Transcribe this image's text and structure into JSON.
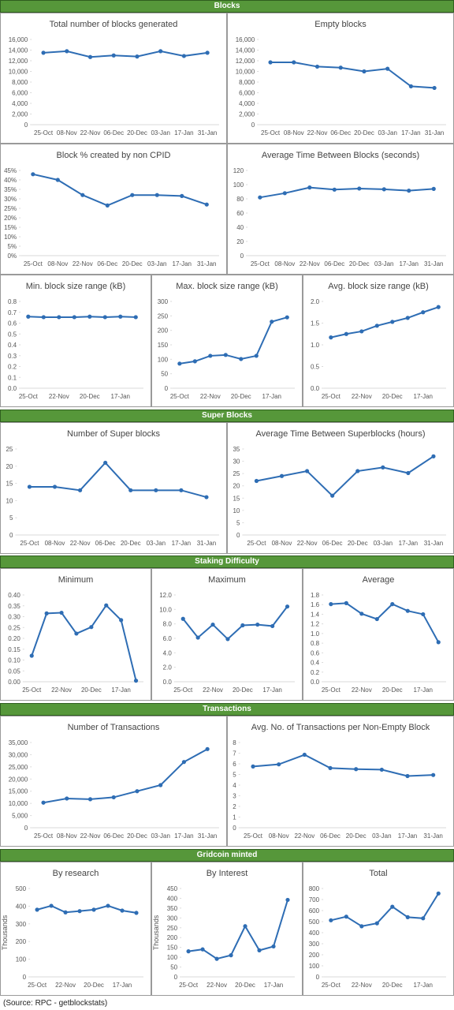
{
  "sections": [
    {
      "title": "Blocks",
      "chart_data": [
        {
          "type": "line",
          "title": "Total number of blocks generated",
          "categories": [
            "25-Oct",
            "08-Nov",
            "22-Nov",
            "06-Dec",
            "20-Dec",
            "03-Jan",
            "17-Jan",
            "31-Jan"
          ],
          "values": [
            13500,
            13800,
            12700,
            13000,
            12800,
            13800,
            12900,
            13500
          ],
          "color": "#2e6db4",
          "ylim": [
            0,
            16000
          ],
          "yticks": [
            0,
            {
              "value": 2000,
              "label": "2,000"
            },
            {
              "value": 4000,
              "label": "4,000"
            },
            {
              "value": 6000,
              "label": "6,000"
            },
            {
              "value": 8000,
              "label": "8,000"
            },
            {
              "value": 10000,
              "label": "10,000"
            },
            {
              "value": 12000,
              "label": "12,000"
            },
            {
              "value": 14000,
              "label": "14,000"
            },
            {
              "value": 16000,
              "label": "16,000"
            }
          ]
        },
        {
          "type": "line",
          "title": "Empty blocks",
          "categories": [
            "25-Oct",
            "08-Nov",
            "22-Nov",
            "06-Dec",
            "20-Dec",
            "03-Jan",
            "17-Jan",
            "31-Jan"
          ],
          "values": [
            11700,
            11700,
            10900,
            10700,
            10000,
            10500,
            7200,
            6900
          ],
          "color": "#2e6db4",
          "ylim": [
            0,
            16000
          ],
          "yticks": [
            0,
            {
              "value": 2000,
              "label": "2,000"
            },
            {
              "value": 4000,
              "label": "4,000"
            },
            {
              "value": 6000,
              "label": "6,000"
            },
            {
              "value": 8000,
              "label": "8,000"
            },
            {
              "value": 10000,
              "label": "10,000"
            },
            {
              "value": 12000,
              "label": "12,000"
            },
            {
              "value": 14000,
              "label": "14,000"
            },
            {
              "value": 16000,
              "label": "16,000"
            }
          ]
        },
        {
          "type": "line",
          "title": "Block % created by non CPID",
          "categories": [
            "25-Oct",
            "08-Nov",
            "22-Nov",
            "06-Dec",
            "20-Dec",
            "03-Jan",
            "17-Jan",
            "31-Jan"
          ],
          "values": [
            43,
            40,
            32,
            26.5,
            32,
            32,
            31.5,
            27
          ],
          "color": "#2e6db4",
          "ylim": [
            0,
            45
          ],
          "yticks": [
            {
              "value": 0,
              "label": "0%"
            },
            {
              "value": 5,
              "label": "5%"
            },
            {
              "value": 10,
              "label": "10%"
            },
            {
              "value": 15,
              "label": "15%"
            },
            {
              "value": 20,
              "label": "20%"
            },
            {
              "value": 25,
              "label": "25%"
            },
            {
              "value": 30,
              "label": "30%"
            },
            {
              "value": 35,
              "label": "35%"
            },
            {
              "value": 40,
              "label": "40%"
            },
            {
              "value": 45,
              "label": "45%"
            }
          ]
        },
        {
          "type": "line",
          "title": "Average Time Between Blocks (seconds)",
          "categories": [
            "25-Oct",
            "08-Nov",
            "22-Nov",
            "06-Dec",
            "20-Dec",
            "03-Jan",
            "17-Jan",
            "31-Jan"
          ],
          "values": [
            82,
            88,
            96,
            93,
            94.5,
            93.5,
            91.5,
            94
          ],
          "color": "#2e6db4",
          "ylim": [
            0,
            120
          ],
          "yticks": [
            0,
            20,
            40,
            60,
            80,
            100,
            120
          ]
        },
        {
          "type": "line",
          "title": "Min. block size range (kB)",
          "categories": [
            "25-Oct",
            null,
            "22-Nov",
            null,
            "20-Dec",
            null,
            "17-Jan",
            null
          ],
          "values": [
            0.66,
            0.655,
            0.655,
            0.655,
            0.66,
            0.655,
            0.66,
            0.655
          ],
          "color": "#2e6db4",
          "ylim": [
            0,
            0.8
          ],
          "yticks": [
            {
              "value": 0,
              "label": "0.0"
            },
            0.1,
            0.2,
            0.3,
            0.4,
            0.5,
            0.6,
            0.7,
            0.8
          ]
        },
        {
          "type": "line",
          "title": "Max. block size range (kB)",
          "categories": [
            "25-Oct",
            null,
            "22-Nov",
            null,
            "20-Dec",
            null,
            "17-Jan",
            null
          ],
          "values": [
            85,
            93,
            112,
            115,
            101,
            112,
            230,
            245
          ],
          "color": "#2e6db4",
          "ylim": [
            0,
            300
          ],
          "yticks": [
            0,
            50,
            100,
            150,
            200,
            250,
            300
          ]
        },
        {
          "type": "line",
          "title": "Avg. block size range (kB)",
          "categories": [
            "25-Oct",
            null,
            "22-Nov",
            null,
            "20-Dec",
            null,
            "17-Jan",
            null
          ],
          "values": [
            1.17,
            1.25,
            1.31,
            1.44,
            1.53,
            1.62,
            1.75,
            1.87
          ],
          "color": "#2e6db4",
          "ylim": [
            0,
            2
          ],
          "yticks": [
            {
              "value": 0,
              "label": "0.0"
            },
            0.5,
            {
              "value": 1,
              "label": "1.0"
            },
            1.5,
            {
              "value": 2,
              "label": "2.0"
            }
          ]
        }
      ]
    },
    {
      "title": "Super Blocks",
      "chart_data": [
        {
          "type": "line",
          "title": "Number of Super blocks",
          "categories": [
            "25-Oct",
            "08-Nov",
            "22-Nov",
            "06-Dec",
            "20-Dec",
            "03-Jan",
            "17-Jan",
            "31-Jan"
          ],
          "values": [
            14,
            14,
            13,
            21,
            13,
            13,
            13,
            11
          ],
          "color": "#2e6db4",
          "ylim": [
            0,
            25
          ],
          "yticks": [
            0,
            5,
            10,
            15,
            20,
            25
          ]
        },
        {
          "type": "line",
          "title": "Average Time Between Superblocks (hours)",
          "categories": [
            "25-Oct",
            "08-Nov",
            "22-Nov",
            "06-Dec",
            "20-Dec",
            "03-Jan",
            "17-Jan",
            "31-Jan"
          ],
          "values": [
            22,
            24,
            26,
            16,
            26,
            27.5,
            25.2,
            32
          ],
          "color": "#2e6db4",
          "ylim": [
            0,
            35
          ],
          "yticks": [
            0,
            5,
            10,
            15,
            20,
            25,
            30,
            35
          ]
        }
      ]
    },
    {
      "title": "Staking Difficulty",
      "chart_data": [
        {
          "type": "line",
          "title": "Minimum",
          "categories": [
            "25-Oct",
            null,
            "22-Nov",
            null,
            "20-Dec",
            null,
            "17-Jan",
            null
          ],
          "values": [
            0.12,
            0.315,
            0.318,
            0.222,
            0.252,
            0.352,
            0.284,
            0.005
          ],
          "color": "#2e6db4",
          "ylim": [
            0,
            0.4
          ],
          "yticks": [
            {
              "value": 0,
              "label": "0.00"
            },
            0.05,
            {
              "value": 0.1,
              "label": "0.10"
            },
            0.15,
            {
              "value": 0.2,
              "label": "0.20"
            },
            0.25,
            {
              "value": 0.3,
              "label": "0.30"
            },
            0.35,
            {
              "value": 0.4,
              "label": "0.40"
            }
          ]
        },
        {
          "type": "line",
          "title": "Maximum",
          "categories": [
            "25-Oct",
            null,
            "22-Nov",
            null,
            "20-Dec",
            null,
            "17-Jan",
            null
          ],
          "values": [
            8.7,
            6.1,
            7.9,
            5.9,
            7.8,
            7.9,
            7.7,
            10.4
          ],
          "color": "#2e6db4",
          "ylim": [
            0,
            12
          ],
          "yticks": [
            {
              "value": 0,
              "label": "0.0"
            },
            {
              "value": 2,
              "label": "2.0"
            },
            {
              "value": 4,
              "label": "4.0"
            },
            {
              "value": 6,
              "label": "6.0"
            },
            {
              "value": 8,
              "label": "8.0"
            },
            {
              "value": 10,
              "label": "10.0"
            },
            {
              "value": 12,
              "label": "12.0"
            }
          ]
        },
        {
          "type": "line",
          "title": "Average",
          "categories": [
            "25-Oct",
            null,
            "22-Nov",
            null,
            "20-Dec",
            null,
            "17-Jan",
            null
          ],
          "values": [
            1.61,
            1.63,
            1.41,
            1.3,
            1.61,
            1.47,
            1.4,
            0.82
          ],
          "color": "#2e6db4",
          "ylim": [
            0,
            1.8
          ],
          "yticks": [
            {
              "value": 0,
              "label": "0.0"
            },
            0.2,
            0.4,
            0.6,
            0.8,
            {
              "value": 1,
              "label": "1.0"
            },
            1.2,
            1.4,
            1.6,
            1.8
          ]
        }
      ]
    },
    {
      "title": "Transactions",
      "chart_data": [
        {
          "type": "line",
          "title": "Number of Transactions",
          "categories": [
            "25-Oct",
            "08-Nov",
            "22-Nov",
            "06-Dec",
            "20-Dec",
            "03-Jan",
            "17-Jan",
            "31-Jan"
          ],
          "values": [
            10300,
            12000,
            11700,
            12500,
            15000,
            17500,
            27000,
            32300
          ],
          "color": "#2e6db4",
          "ylim": [
            0,
            35000
          ],
          "yticks": [
            0,
            {
              "value": 5000,
              "label": "5,000"
            },
            {
              "value": 10000,
              "label": "10,000"
            },
            {
              "value": 15000,
              "label": "15,000"
            },
            {
              "value": 20000,
              "label": "20,000"
            },
            {
              "value": 25000,
              "label": "25,000"
            },
            {
              "value": 30000,
              "label": "30,000"
            },
            {
              "value": 35000,
              "label": "35,000"
            }
          ]
        },
        {
          "type": "line",
          "title": "Avg. No. of Transactions per Non-Empty Block",
          "categories": [
            "25-Oct",
            "08-Nov",
            "22-Nov",
            "06-Dec",
            "20-Dec",
            "03-Jan",
            "17-Jan",
            "31-Jan"
          ],
          "values": [
            5.75,
            5.95,
            6.85,
            5.6,
            5.5,
            5.45,
            4.85,
            4.95
          ],
          "color": "#2e6db4",
          "ylim": [
            0,
            8
          ],
          "yticks": [
            0,
            1,
            2,
            3,
            4,
            5,
            6,
            7,
            8
          ]
        }
      ]
    },
    {
      "title": "Gridcoin minted",
      "chart_data": [
        {
          "type": "line",
          "title": "By research",
          "ylabel": "Thousands",
          "categories": [
            "25-Oct",
            null,
            "22-Nov",
            null,
            "20-Dec",
            null,
            "17-Jan",
            null
          ],
          "values": [
            380,
            402,
            365,
            372,
            380,
            402,
            375,
            362
          ],
          "color": "#2e6db4",
          "ylim": [
            0,
            500
          ],
          "yticks": [
            0,
            100,
            200,
            300,
            400,
            500
          ]
        },
        {
          "type": "line",
          "title": "By Interest",
          "ylabel": "Thousands",
          "categories": [
            "25-Oct",
            null,
            "22-Nov",
            null,
            "20-Dec",
            null,
            "17-Jan",
            null
          ],
          "values": [
            130,
            140,
            92,
            110,
            258,
            135,
            155,
            392
          ],
          "color": "#2e6db4",
          "ylim": [
            0,
            450
          ],
          "yticks": [
            0,
            50,
            100,
            150,
            200,
            250,
            300,
            350,
            400,
            450
          ]
        },
        {
          "type": "line",
          "title": "Total",
          "categories": [
            "25-Oct",
            null,
            "22-Nov",
            null,
            "20-Dec",
            null,
            "17-Jan",
            null
          ],
          "values": [
            512,
            545,
            458,
            485,
            635,
            540,
            530,
            755
          ],
          "color": "#2e6db4",
          "ylim": [
            0,
            800
          ],
          "yticks": [
            0,
            100,
            200,
            300,
            400,
            500,
            600,
            700,
            800
          ]
        }
      ]
    }
  ],
  "source": "(Source: RPC - getblockstats)"
}
